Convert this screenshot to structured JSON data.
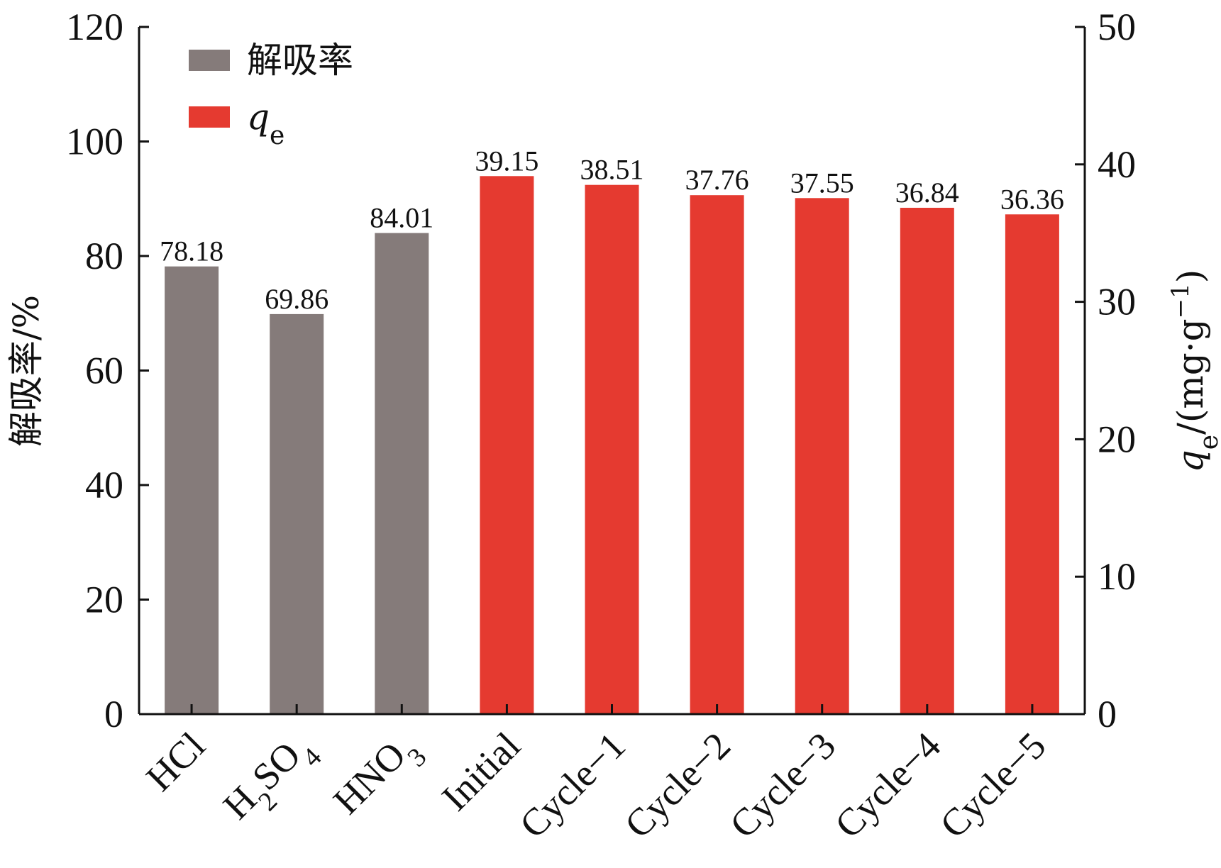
{
  "chart_data": {
    "type": "bar",
    "categories": [
      {
        "label": "HCl"
      },
      {
        "label": "H",
        "sub": "2",
        "tail": "SO",
        "sub2": "4"
      },
      {
        "label": "HNO",
        "sub": "3"
      },
      {
        "label": "Initial"
      },
      {
        "label": "Cycle−1"
      },
      {
        "label": "Cycle−2"
      },
      {
        "label": "Cycle−3"
      },
      {
        "label": "Cycle−4"
      },
      {
        "label": "Cycle−5"
      }
    ],
    "series": [
      {
        "name": "解吸率",
        "axis": "left",
        "color": "#857b7a",
        "values": [
          78.18,
          69.86,
          84.01,
          null,
          null,
          null,
          null,
          null,
          null
        ],
        "labels": [
          "78.18",
          "69.86",
          "84.01",
          "",
          "",
          "",
          "",
          "",
          ""
        ]
      },
      {
        "name": "qe",
        "axis": "right",
        "color": "#e53a30",
        "values": [
          null,
          null,
          null,
          39.15,
          38.51,
          37.76,
          37.55,
          36.84,
          36.36
        ],
        "labels": [
          "",
          "",
          "",
          "39.15",
          "38.51",
          "37.76",
          "37.55",
          "36.84",
          "36.36"
        ]
      }
    ],
    "y_left": {
      "label": "解吸率/%",
      "lim": [
        0,
        120
      ],
      "ticks": [
        "0",
        "20",
        "40",
        "60",
        "80",
        "100",
        "120"
      ]
    },
    "y_right": {
      "label_main": "q",
      "label_sub": "e",
      "label_rest": "/(mg·g",
      "label_sup": "−1",
      "label_close": ")",
      "lim": [
        0,
        50
      ],
      "ticks": [
        "0",
        "10",
        "20",
        "30",
        "40",
        "50"
      ]
    },
    "legend": {
      "position": "top-left",
      "items": [
        {
          "label": "解吸率",
          "color": "#857b7a"
        },
        {
          "label": "q",
          "sub": "e",
          "color": "#e53a30"
        }
      ]
    },
    "grid": false
  }
}
